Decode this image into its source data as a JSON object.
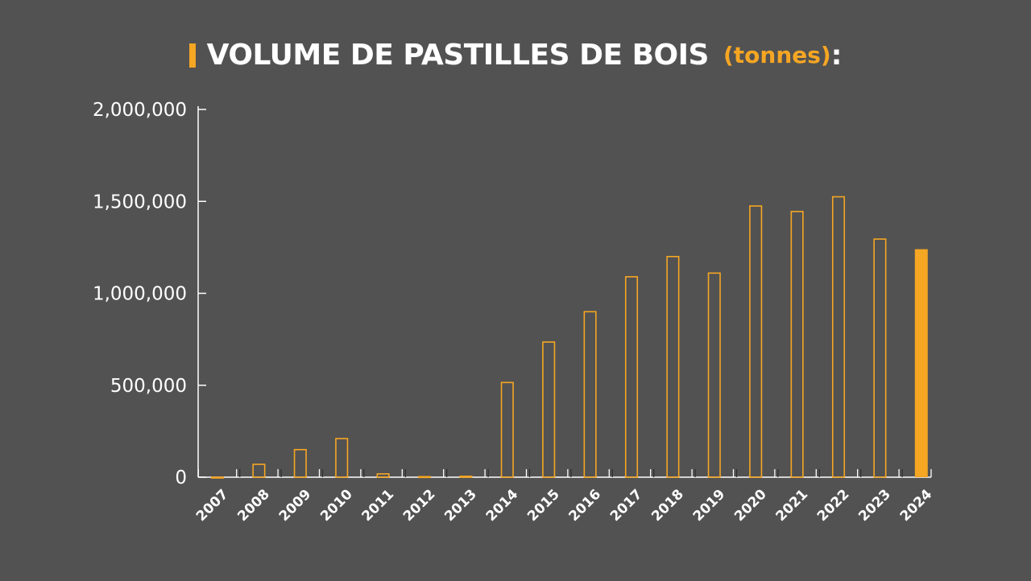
{
  "title": {
    "main": "VOLUME DE PASTILLES DE BOIS",
    "unit": "(tonnes)",
    "colon": ":"
  },
  "colors": {
    "background": "#525252",
    "accent": "#f5a623",
    "text": "#ffffff"
  },
  "chart_data": {
    "type": "bar",
    "categories": [
      "2007",
      "2008",
      "2009",
      "2010",
      "2011",
      "2012",
      "2013",
      "2014",
      "2015",
      "2016",
      "2017",
      "2018",
      "2019",
      "2020",
      "2021",
      "2022",
      "2023",
      "2024"
    ],
    "values": [
      0,
      70000,
      150000,
      210000,
      18000,
      3000,
      5000,
      515000,
      735000,
      900000,
      1090000,
      1200000,
      1110000,
      1475000,
      1445000,
      1525000,
      1295000,
      1240000
    ],
    "highlighted": [
      false,
      false,
      false,
      false,
      false,
      false,
      false,
      false,
      false,
      false,
      false,
      false,
      false,
      false,
      false,
      false,
      false,
      true
    ],
    "ylim": [
      0,
      2000000
    ],
    "yticks": [
      0,
      500000,
      1000000,
      1500000,
      2000000
    ],
    "ytick_labels": [
      "0",
      "500,000",
      "1,000,000",
      "1,500,000",
      "2,000,000"
    ],
    "grid": false,
    "legend": "none"
  }
}
